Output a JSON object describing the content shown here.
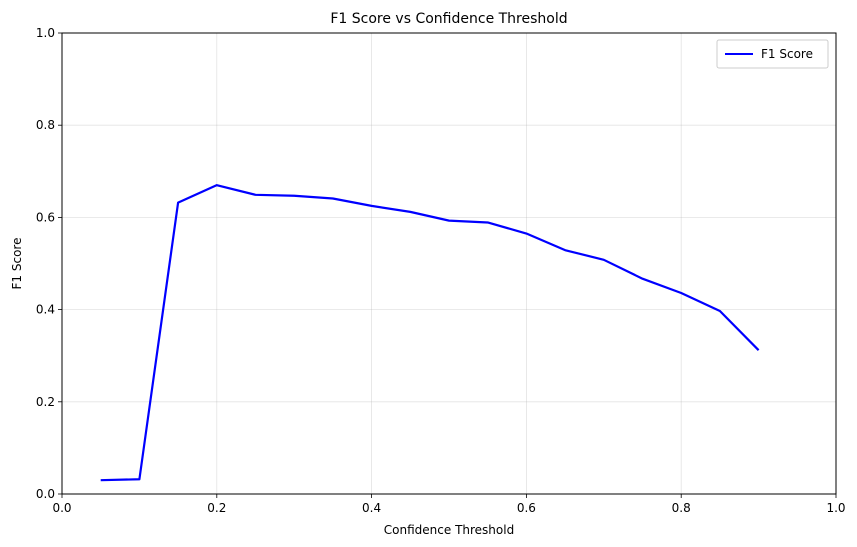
{
  "chart_data": {
    "type": "line",
    "title": "F1 Score vs Confidence Threshold",
    "xlabel": "Confidence Threshold",
    "ylabel": "F1 Score",
    "xlim": [
      0.0,
      1.0
    ],
    "ylim": [
      0.0,
      1.0
    ],
    "xticks": [
      "0.0",
      "0.2",
      "0.4",
      "0.6",
      "0.8",
      "1.0"
    ],
    "yticks": [
      "0.0",
      "0.2",
      "0.4",
      "0.6",
      "0.8",
      "1.0"
    ],
    "grid": true,
    "legend_position": "top-right",
    "series": [
      {
        "name": "F1 Score",
        "color": "#0000ff",
        "x": [
          0.05,
          0.1,
          0.15,
          0.2,
          0.25,
          0.3,
          0.35,
          0.4,
          0.45,
          0.5,
          0.55,
          0.6,
          0.65,
          0.7,
          0.75,
          0.8,
          0.85,
          0.9
        ],
        "y": [
          0.03,
          0.032,
          0.632,
          0.67,
          0.649,
          0.647,
          0.641,
          0.625,
          0.612,
          0.593,
          0.589,
          0.565,
          0.529,
          0.508,
          0.467,
          0.436,
          0.397,
          0.312
        ]
      }
    ]
  }
}
